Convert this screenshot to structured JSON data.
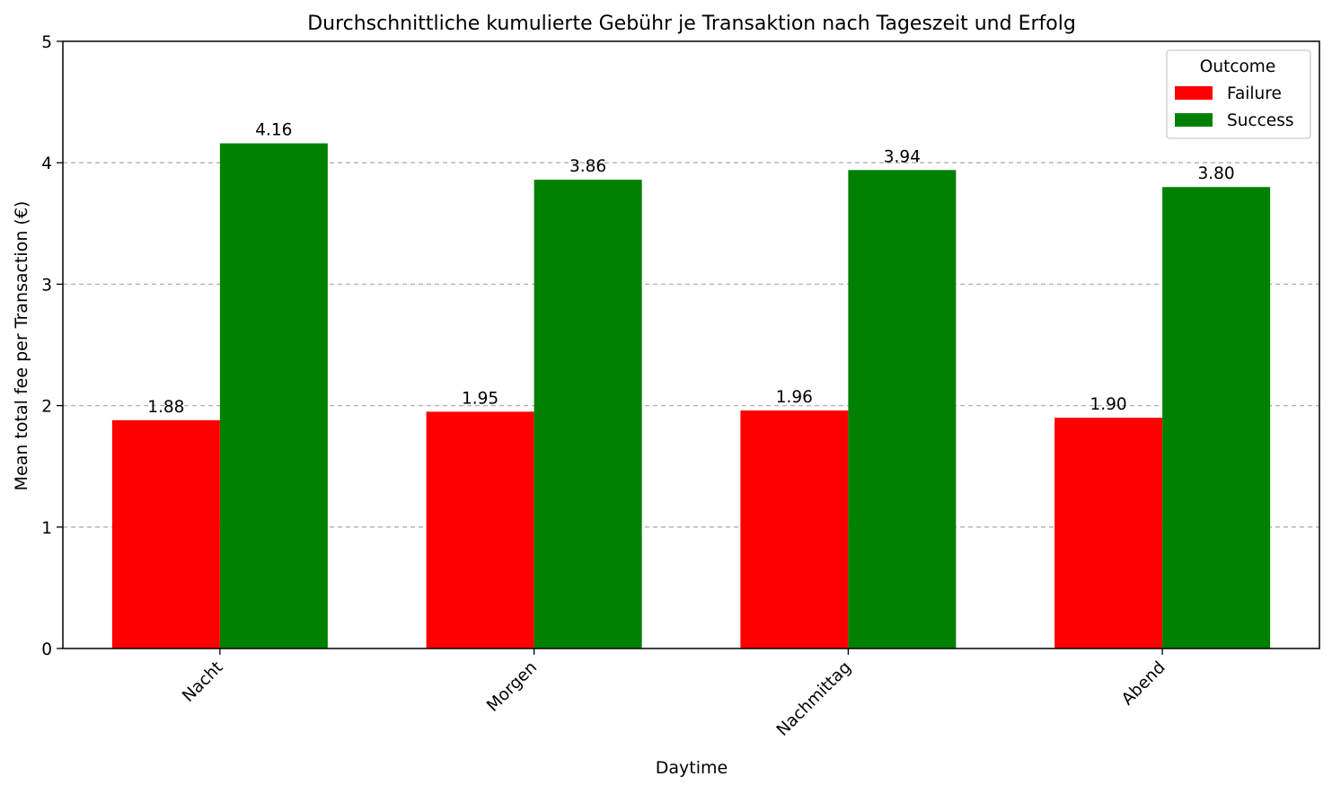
{
  "chart_data": {
    "type": "bar",
    "title": "Durchschnittliche kumulierte Gebühr je Transaktion nach Tageszeit und Erfolg",
    "xlabel": "Daytime",
    "ylabel": "Mean total fee per Transaction (€)",
    "categories": [
      "Nacht",
      "Morgen",
      "Nachmittag",
      "Abend"
    ],
    "series": [
      {
        "name": "Failure",
        "color": "#ff0000",
        "values": [
          1.88,
          1.95,
          1.96,
          1.9
        ],
        "labels": [
          "1.88",
          "1.95",
          "1.96",
          "1.90"
        ]
      },
      {
        "name": "Success",
        "color": "#008000",
        "values": [
          4.16,
          3.86,
          3.94,
          3.8
        ],
        "labels": [
          "4.16",
          "3.86",
          "3.94",
          "3.80"
        ]
      }
    ],
    "ylim": [
      0,
      5
    ],
    "yticks": [
      0,
      1,
      2,
      3,
      4,
      5
    ],
    "grid": "y-dashed",
    "legend": {
      "title": "Outcome",
      "placement": "top-right"
    },
    "xtick_rotation_deg": 45
  }
}
